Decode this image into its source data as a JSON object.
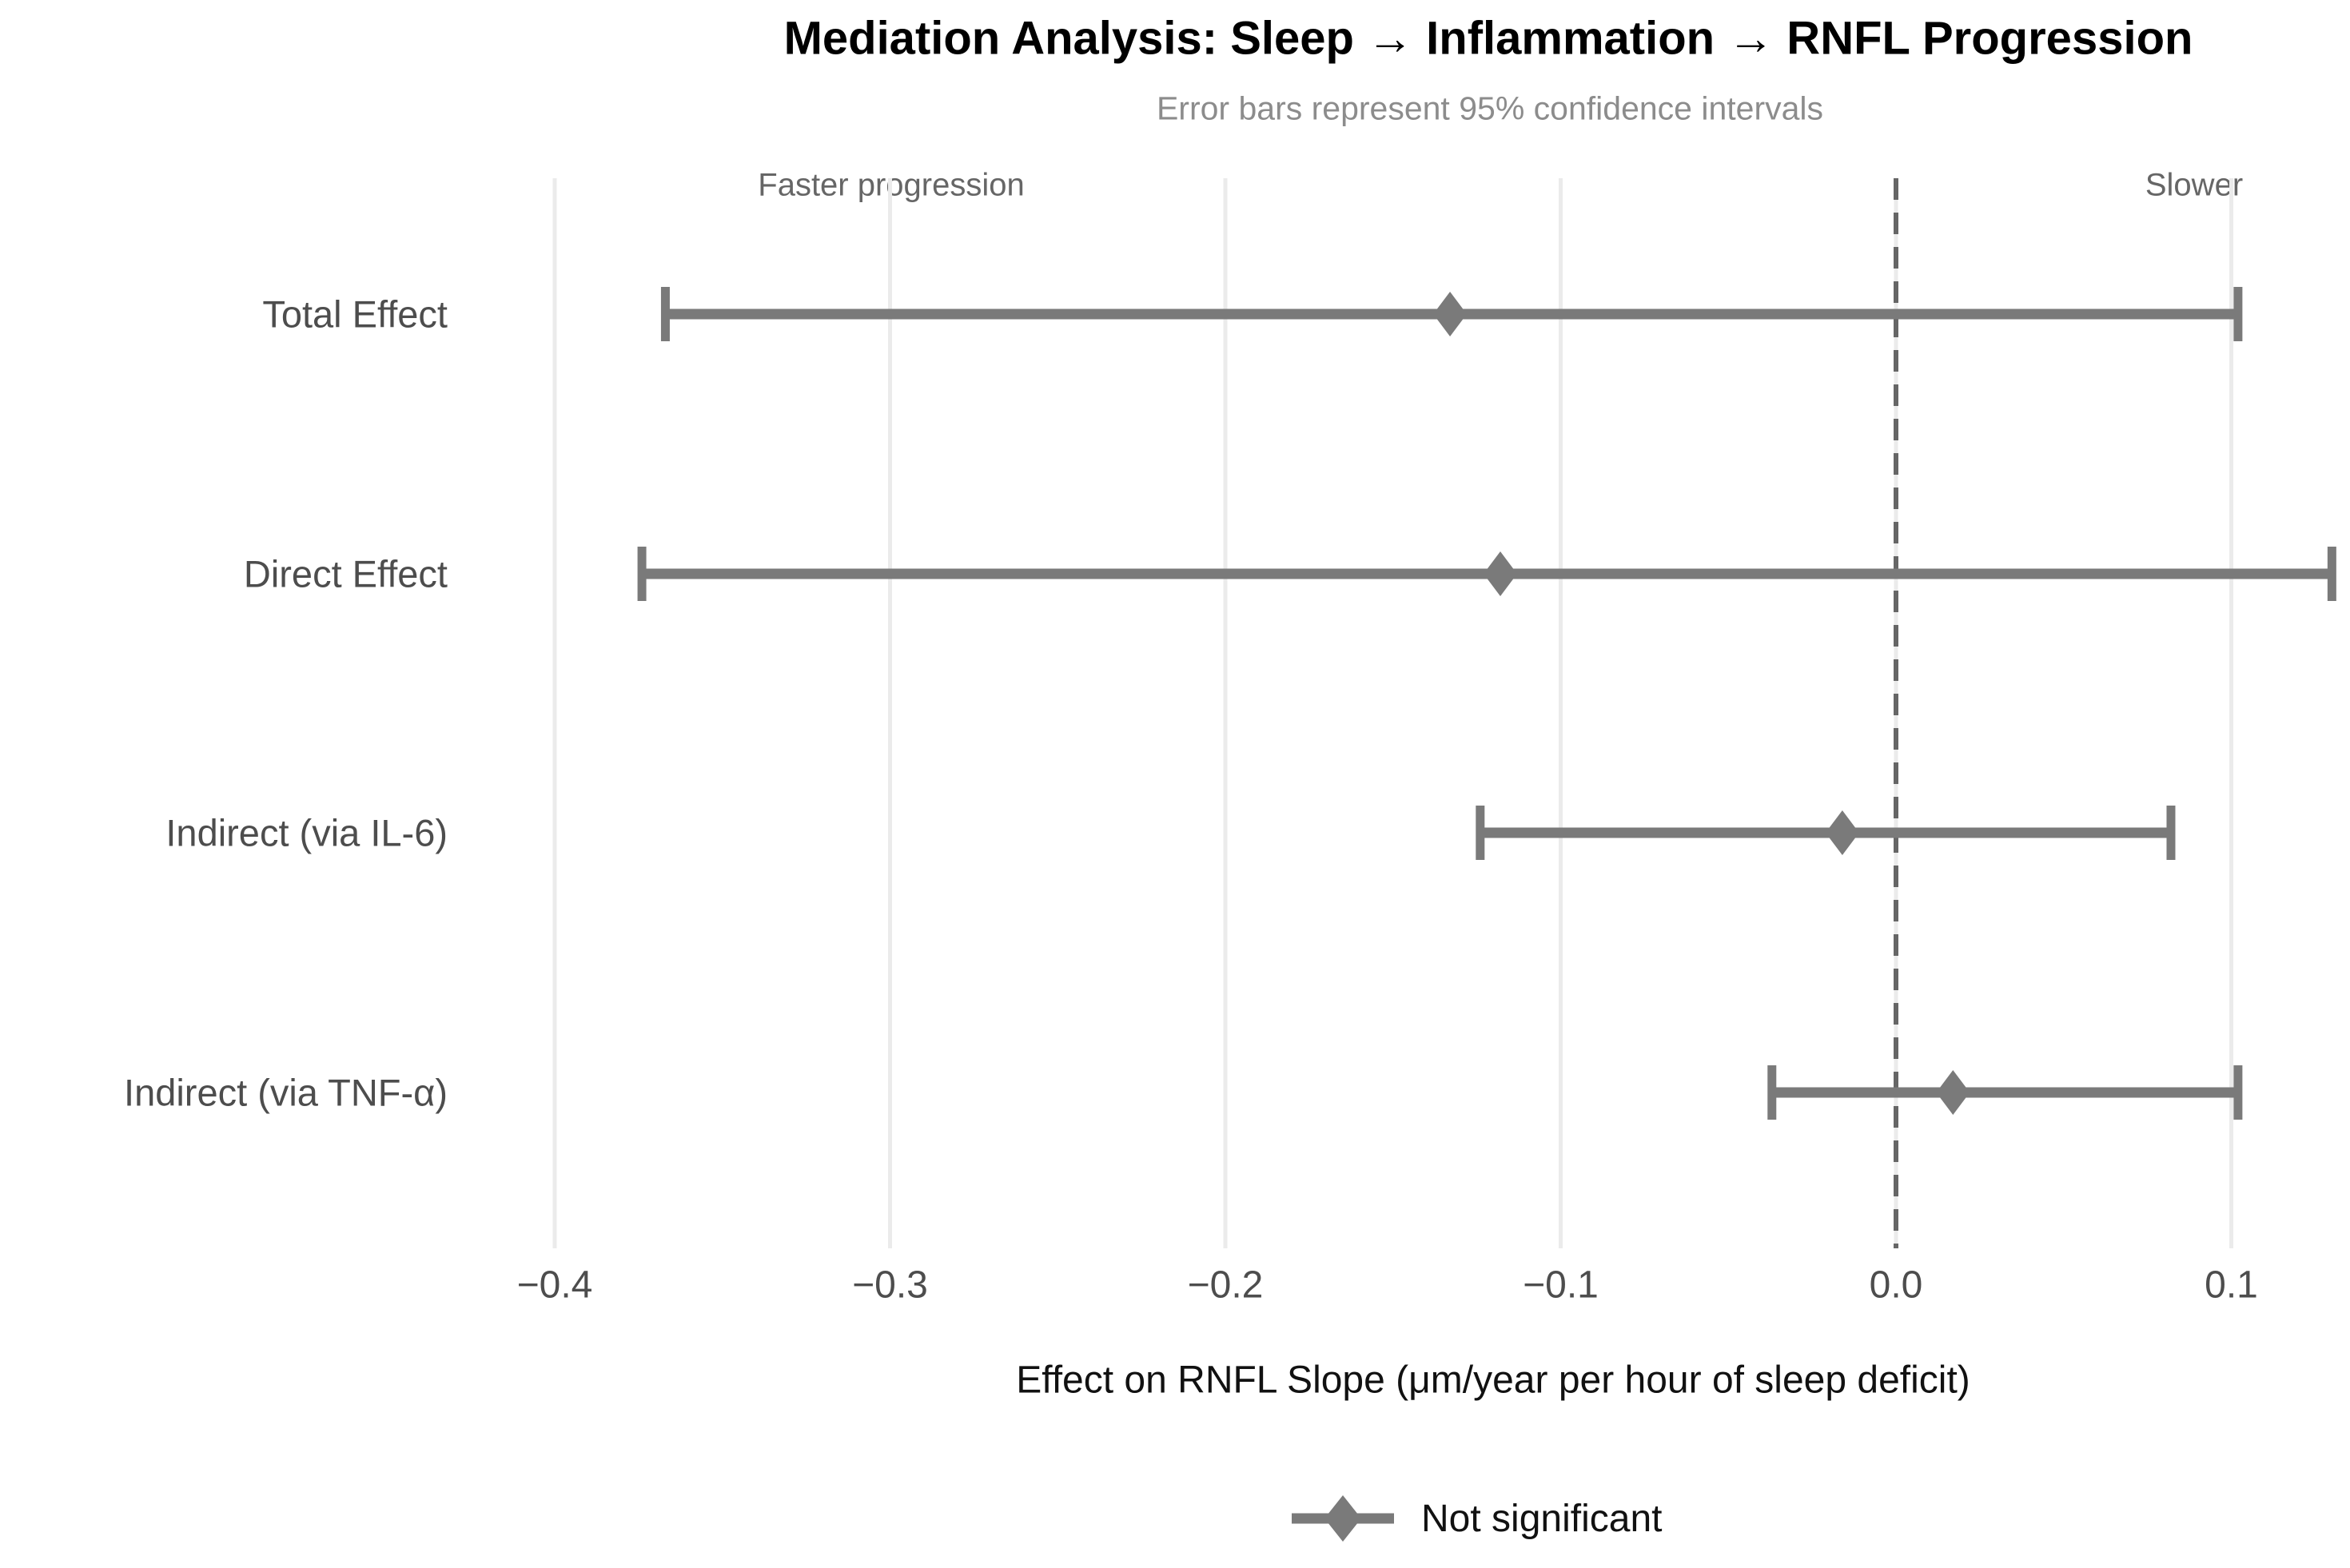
{
  "title": "Mediation Analysis: Sleep → Inflammation → RNFL Progression",
  "subtitle": "Error bars represent 95% confidence intervals",
  "annotations": {
    "left": "Faster progression",
    "right": "Slower"
  },
  "x_axis": {
    "title": "Effect on RNFL Slope (μm/year per hour of sleep deficit)",
    "tick_labels": [
      "−0.4",
      "−0.3",
      "−0.2",
      "−0.1",
      "0.0",
      "0.1"
    ],
    "tick_values": [
      -0.4,
      -0.3,
      -0.2,
      -0.1,
      0.0,
      0.1
    ]
  },
  "legend": {
    "position": "bottom",
    "items": [
      {
        "marker": "diamond-with-line",
        "label": "Not significant"
      }
    ]
  },
  "colors": {
    "estimate_marker": "#7a7a7a",
    "error_bar": "#7a7a7a",
    "zero_line": "#666666",
    "gridline": "#ebebeb",
    "title": "#000000",
    "subtitle": "#8c8c8c",
    "axis_text": "#4d4d4d",
    "annotation": "#666666",
    "legend_text": "#111111",
    "background": "#ffffff"
  },
  "chart_data": {
    "type": "scatter",
    "subtype": "forest-plot-errorbar",
    "title": "Mediation Analysis: Sleep → Inflammation → RNFL Progression",
    "subtitle": "Error bars represent 95% confidence intervals",
    "xlabel": "Effect on RNFL Slope (μm/year per hour of sleep deficit)",
    "ylabel": "",
    "xlim": [
      -0.42,
      0.135
    ],
    "grid": "vertical-only",
    "zero_reference_line": 0.0,
    "legend_position": "bottom",
    "categories": [
      "Total Effect",
      "Direct Effect",
      "Indirect (via IL-6)",
      "Indirect (via TNF-α)"
    ],
    "points": [
      {
        "label": "Total Effect",
        "estimate": -0.133,
        "ci_low": -0.367,
        "ci_high": 0.102,
        "significance": "Not significant"
      },
      {
        "label": "Direct Effect",
        "estimate": -0.118,
        "ci_low": -0.374,
        "ci_high": 0.13,
        "significance": "Not significant"
      },
      {
        "label": "Indirect (via IL-6)",
        "estimate": -0.016,
        "ci_low": -0.124,
        "ci_high": 0.082,
        "significance": "Not significant"
      },
      {
        "label": "Indirect (via TNF-α)",
        "estimate": 0.017,
        "ci_low": -0.037,
        "ci_high": 0.102,
        "significance": "Not significant"
      }
    ]
  }
}
